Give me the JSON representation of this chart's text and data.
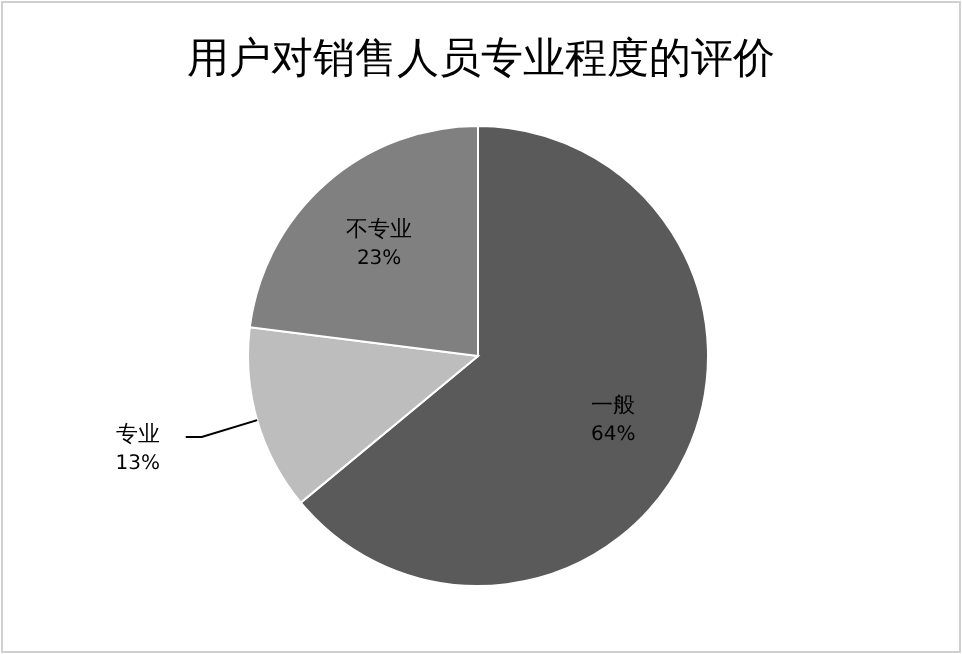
{
  "chart_data": {
    "type": "pie",
    "title": "用户对销售人员专业程度的评价",
    "categories": [
      "一般",
      "专业",
      "不专业"
    ],
    "values": [
      64,
      13,
      23
    ],
    "colors": [
      "#5a5a5a",
      "#bdbdbd",
      "#808080"
    ],
    "value_labels": [
      "64%",
      "13%",
      "23%"
    ]
  }
}
